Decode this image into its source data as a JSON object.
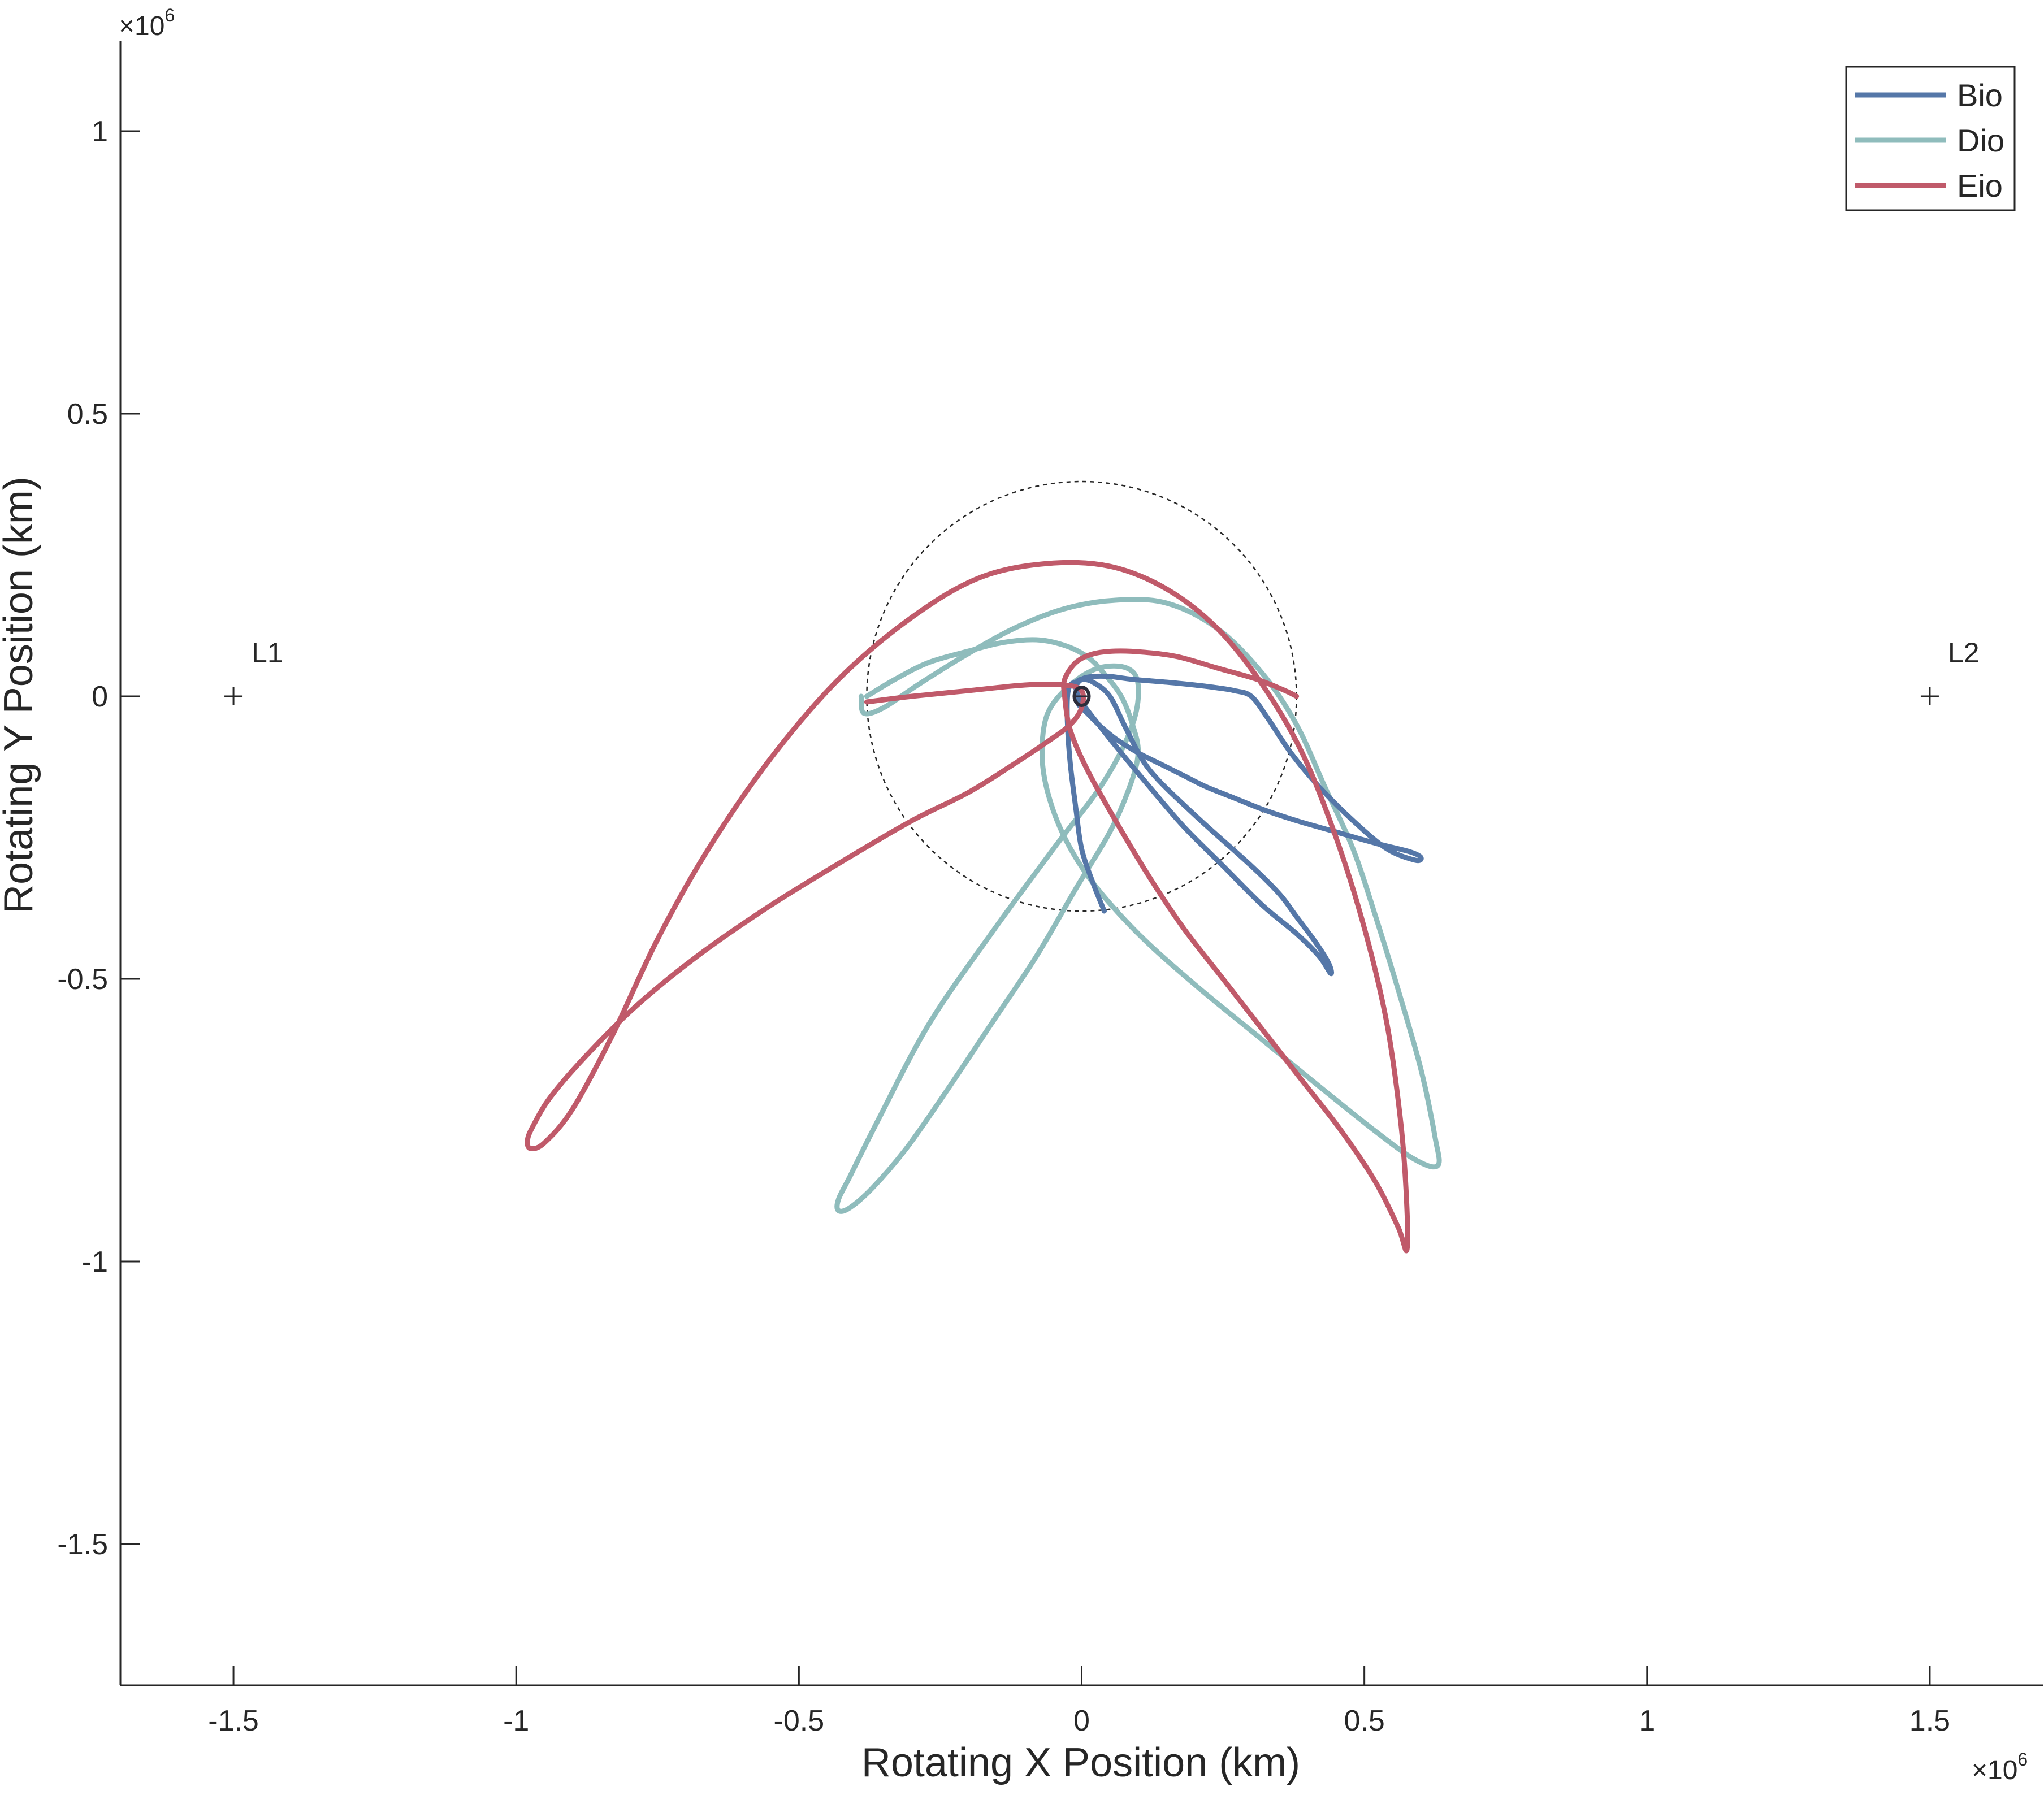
{
  "chart_data": {
    "type": "line",
    "xlabel": "Rotating X Position (km)",
    "ylabel": "Rotating Y Position (km)",
    "x_multiplier": "×10",
    "y_multiplier": "×10",
    "exponent": "6",
    "xlim": [
      -1.7,
      1.7
    ],
    "ylim": [
      -1.75,
      1.16
    ],
    "xticks": [
      -1.5,
      -1,
      -0.5,
      0,
      0.5,
      1,
      1.5
    ],
    "xtick_labels": [
      "-1.5",
      "-1",
      "-0.5",
      "0",
      "0.5",
      "1",
      "1.5"
    ],
    "yticks": [
      -1.5,
      -1,
      -0.5,
      0,
      0.5,
      1
    ],
    "ytick_labels": [
      "-1.5",
      "-1",
      "-0.5",
      "0",
      "0.5",
      "1"
    ],
    "grid": false,
    "legend_position": "top-right",
    "colors": {
      "Bio": "#5577a8",
      "Dio": "#8fbcbc",
      "Eio": "#c05a6a",
      "axis": "#262626",
      "sphere": "#262626"
    },
    "series": [
      {
        "name": "Bio",
        "x": [
          0.04,
          0.02,
          0.0,
          -0.01,
          -0.02,
          -0.025,
          -0.025,
          -0.02,
          -0.01,
          0.0,
          0.02,
          0.05,
          0.08,
          0.12,
          0.2,
          0.3,
          0.35,
          0.38,
          0.41,
          0.43,
          0.44,
          0.44,
          0.42,
          0.38,
          0.32,
          0.25,
          0.18,
          0.12,
          0.07,
          0.03,
          0.0,
          -0.01,
          0.0,
          0.02,
          0.05,
          0.09,
          0.15,
          0.2,
          0.24,
          0.27,
          0.3,
          0.33,
          0.37,
          0.42,
          0.48,
          0.54,
          0.59,
          0.6,
          0.58,
          0.52,
          0.45,
          0.38,
          0.32,
          0.27,
          0.22,
          0.18,
          0.14,
          0.1,
          0.06,
          0.03,
          0.01,
          -0.005,
          -0.01
        ],
        "y": [
          -0.38,
          -0.33,
          -0.27,
          -0.2,
          -0.12,
          -0.05,
          0.0,
          0.02,
          0.025,
          0.03,
          0.025,
          0.0,
          -0.06,
          -0.13,
          -0.21,
          -0.3,
          -0.35,
          -0.39,
          -0.43,
          -0.46,
          -0.48,
          -0.49,
          -0.46,
          -0.42,
          -0.37,
          -0.3,
          -0.23,
          -0.16,
          -0.1,
          -0.05,
          -0.01,
          0.015,
          0.03,
          0.035,
          0.035,
          0.03,
          0.025,
          0.02,
          0.015,
          0.01,
          0.0,
          -0.04,
          -0.1,
          -0.16,
          -0.22,
          -0.27,
          -0.29,
          -0.285,
          -0.275,
          -0.26,
          -0.24,
          -0.22,
          -0.2,
          -0.18,
          -0.16,
          -0.14,
          -0.12,
          -0.1,
          -0.075,
          -0.05,
          -0.03,
          -0.015,
          0.0
        ]
      },
      {
        "name": "Dio",
        "x": [
          -0.38,
          -0.33,
          -0.27,
          -0.2,
          -0.14,
          -0.08,
          -0.03,
          0.01,
          0.04,
          0.07,
          0.09,
          0.1,
          0.085,
          0.05,
          -0.01,
          -0.08,
          -0.16,
          -0.24,
          -0.31,
          -0.37,
          -0.41,
          -0.43,
          -0.43,
          -0.41,
          -0.36,
          -0.27,
          -0.16,
          -0.05,
          0.04,
          0.09,
          0.1,
          0.08,
          0.03,
          -0.02,
          -0.06,
          -0.07,
          -0.06,
          -0.03,
          0.02,
          0.1,
          0.2,
          0.31,
          0.42,
          0.52,
          0.59,
          0.63,
          0.625,
          0.6,
          0.56,
          0.52,
          0.48,
          0.43,
          0.38,
          0.32,
          0.24,
          0.15,
          0.06,
          -0.03,
          -0.12,
          -0.21,
          -0.29,
          -0.35,
          -0.385,
          -0.39
        ],
        "y": [
          0.0,
          0.03,
          0.06,
          0.08,
          0.095,
          0.1,
          0.09,
          0.07,
          0.04,
          0.0,
          -0.05,
          -0.1,
          -0.16,
          -0.24,
          -0.34,
          -0.46,
          -0.58,
          -0.7,
          -0.8,
          -0.87,
          -0.905,
          -0.91,
          -0.89,
          -0.85,
          -0.75,
          -0.58,
          -0.42,
          -0.27,
          -0.15,
          -0.05,
          0.02,
          0.05,
          0.05,
          0.02,
          -0.03,
          -0.1,
          -0.17,
          -0.25,
          -0.33,
          -0.42,
          -0.51,
          -0.6,
          -0.69,
          -0.77,
          -0.82,
          -0.83,
          -0.78,
          -0.66,
          -0.52,
          -0.39,
          -0.27,
          -0.16,
          -0.05,
          0.04,
          0.12,
          0.165,
          0.17,
          0.155,
          0.12,
          0.07,
          0.02,
          -0.02,
          -0.03,
          0.0
        ]
      },
      {
        "name": "Eio",
        "x": [
          -0.38,
          -0.3,
          -0.2,
          -0.1,
          -0.03,
          0.0,
          0.0,
          -0.02,
          -0.06,
          -0.12,
          -0.2,
          -0.3,
          -0.42,
          -0.55,
          -0.68,
          -0.79,
          -0.88,
          -0.94,
          -0.97,
          -0.98,
          -0.975,
          -0.95,
          -0.9,
          -0.83,
          -0.75,
          -0.66,
          -0.55,
          -0.43,
          -0.3,
          -0.18,
          -0.06,
          0.05,
          0.15,
          0.24,
          0.32,
          0.39,
          0.45,
          0.5,
          0.54,
          0.565,
          0.575,
          0.575,
          0.56,
          0.52,
          0.46,
          0.39,
          0.32,
          0.25,
          0.18,
          0.12,
          0.06,
          0.01,
          -0.02,
          -0.03,
          -0.03,
          -0.01,
          0.02,
          0.06,
          0.11,
          0.17,
          0.24,
          0.31,
          0.36,
          0.38
        ],
        "y": [
          -0.01,
          0.0,
          0.01,
          0.02,
          0.02,
          0.01,
          -0.02,
          -0.05,
          -0.08,
          -0.12,
          -0.17,
          -0.22,
          -0.29,
          -0.37,
          -0.46,
          -0.55,
          -0.64,
          -0.71,
          -0.76,
          -0.785,
          -0.8,
          -0.79,
          -0.73,
          -0.6,
          -0.43,
          -0.27,
          -0.11,
          0.03,
          0.14,
          0.21,
          0.235,
          0.23,
          0.19,
          0.12,
          0.02,
          -0.1,
          -0.25,
          -0.41,
          -0.58,
          -0.76,
          -0.9,
          -0.98,
          -0.94,
          -0.86,
          -0.77,
          -0.68,
          -0.59,
          -0.5,
          -0.41,
          -0.32,
          -0.22,
          -0.13,
          -0.06,
          0.0,
          0.03,
          0.06,
          0.075,
          0.08,
          0.078,
          0.07,
          0.05,
          0.03,
          0.01,
          0.0
        ]
      }
    ],
    "annotations": [
      {
        "label": "L1",
        "x": -1.5,
        "y": 0
      },
      {
        "label": "L2",
        "x": 1.5,
        "y": 0
      }
    ],
    "reference_circle": {
      "center": [
        0,
        0
      ],
      "radius": 0.38
    },
    "center_body": {
      "x": 0,
      "y": 0
    }
  }
}
